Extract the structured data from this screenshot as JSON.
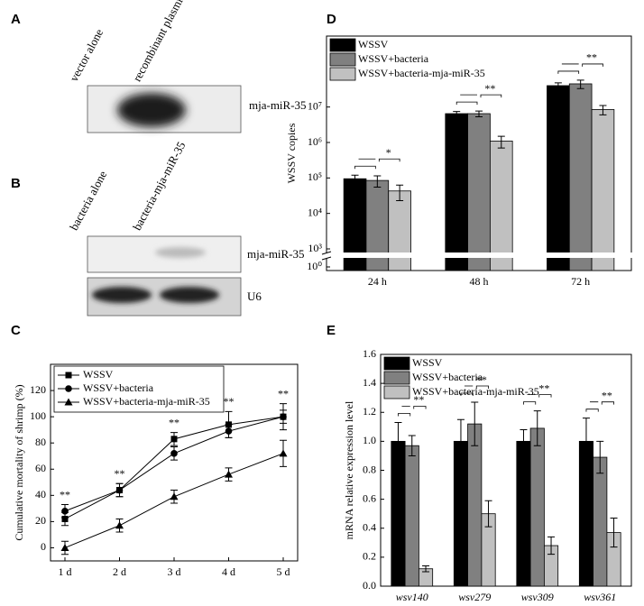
{
  "panel_labels": [
    "A",
    "B",
    "C",
    "D",
    "E"
  ],
  "blots": {
    "A": {
      "lanes": [
        "vector alone",
        "recombinant plasmid"
      ],
      "bands": [
        "mja-miR-35"
      ]
    },
    "B": {
      "lanes": [
        "bacteria alone",
        "bacteria-mja-miR-35"
      ],
      "bands": [
        "mja-miR-35",
        "U6"
      ]
    }
  },
  "chart_data": [
    {
      "type": "line",
      "ylabel": "Cumulative mortality of shrimp (%)",
      "categories": [
        "1 d",
        "2 d",
        "3 d",
        "4 d",
        "5 d"
      ],
      "ylim": [
        -10,
        140
      ],
      "yticks": [
        0,
        20,
        40,
        60,
        80,
        100,
        120
      ],
      "legend": "top-left",
      "series": [
        {
          "name": "WSSV",
          "color": "#000000",
          "marker": "square",
          "values": [
            22,
            44,
            83,
            94,
            100
          ],
          "errors": [
            5,
            5,
            5,
            10,
            10
          ]
        },
        {
          "name": "WSSV+bacteria",
          "color": "#000000",
          "marker": "circle",
          "values": [
            28,
            44,
            72,
            89,
            100
          ],
          "errors": [
            5,
            5,
            5,
            5,
            5
          ]
        },
        {
          "name": "WSSV+bacteria-mja-miR-35",
          "color": "#000000",
          "marker": "triangle",
          "values": [
            0,
            17,
            39,
            56,
            72
          ],
          "errors": [
            5,
            5,
            5,
            5,
            10
          ]
        }
      ],
      "annotations": [
        "**",
        "**",
        "**",
        "**",
        "**"
      ]
    },
    {
      "type": "bar",
      "ylabel": "WSSV copies",
      "log": true,
      "axis_break": true,
      "categories": [
        "24 h",
        "48 h",
        "72 h"
      ],
      "ylim": [
        1000,
        1000000000
      ],
      "yticks": [
        {
          "value": 1,
          "label": "10⁰"
        },
        {
          "value": 1000,
          "label": "10³"
        },
        {
          "value": 10000,
          "label": "10⁴"
        },
        {
          "value": 100000,
          "label": "10⁵"
        },
        {
          "value": 1000000,
          "label": "10⁶"
        },
        {
          "value": 10000000,
          "label": "10⁷"
        }
      ],
      "legend": "top-left",
      "series": [
        {
          "name": "WSSV",
          "color": "#000000",
          "values": [
            95000,
            6500000,
            40000000
          ],
          "errors": [
            25000,
            1000000,
            8000000
          ]
        },
        {
          "name": "WSSV+bacteria",
          "color": "#808080",
          "values": [
            85000,
            6500000,
            45000000
          ],
          "errors": [
            30000,
            1200000,
            12000000
          ]
        },
        {
          "name": "WSSV+bacteria-mja-miR-35",
          "color": "#c0c0c0",
          "values": [
            43000,
            1100000,
            8500000
          ],
          "errors": [
            20000,
            400000,
            2500000
          ]
        }
      ],
      "annotations": [
        "*",
        "**",
        "**"
      ]
    },
    {
      "type": "bar",
      "ylabel": "mRNA relative expression level",
      "categories": [
        "wsv140",
        "wsv279",
        "wsv309",
        "wsv361"
      ],
      "category_style": "italic",
      "ylim": [
        0,
        1.6
      ],
      "yticks": [
        {
          "value": 0,
          "label": "0.0"
        },
        0.2,
        0.4,
        0.6,
        0.8,
        {
          "value": 1,
          "label": "1.0"
        },
        1.2,
        1.4,
        1.6
      ],
      "legend": "top-left",
      "series": [
        {
          "name": "WSSV",
          "color": "#000000",
          "values": [
            1,
            1,
            1,
            1
          ],
          "errors": [
            0.13,
            0.15,
            0.08,
            0.16
          ]
        },
        {
          "name": "WSSV+bacteria",
          "color": "#808080",
          "values": [
            0.97,
            1.12,
            1.09,
            0.89
          ],
          "errors": [
            0.07,
            0.15,
            0.12,
            0.11
          ]
        },
        {
          "name": "WSSV+bacteria-mja-miR-35",
          "color": "#c0c0c0",
          "values": [
            0.12,
            0.5,
            0.28,
            0.37
          ],
          "errors": [
            0.02,
            0.09,
            0.06,
            0.1
          ]
        }
      ],
      "annotations": [
        "**",
        "**",
        "**",
        "**"
      ]
    }
  ]
}
